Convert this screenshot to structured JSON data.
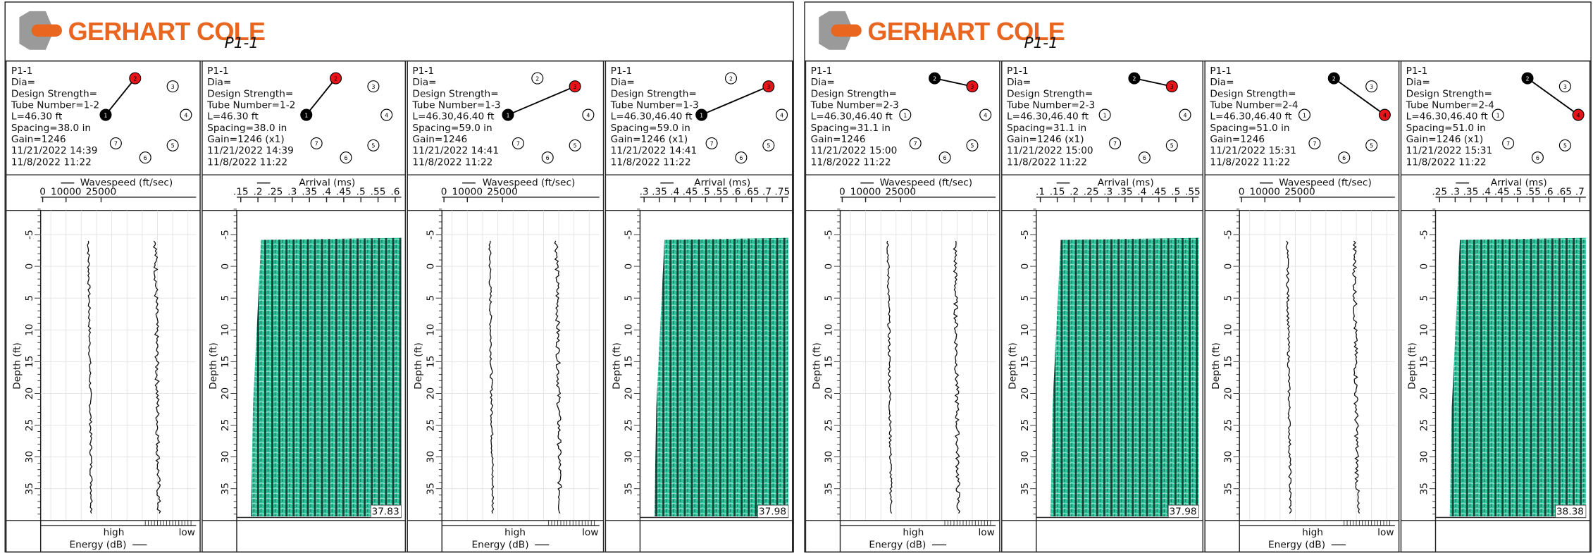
{
  "tube_labels": [
    "1",
    "2",
    "3",
    "4",
    "5",
    "6",
    "7"
  ],
  "reports": [
    {
      "logo": "GERHART COLE",
      "title": "P1-1",
      "panels": [
        {
          "info": [
            "P1-1",
            "Dia=",
            "Design Strength=",
            "Tube Number=1-2",
            "L=46.30 ft",
            "Spacing=38.0 in",
            "Gain=1246",
            "11/21/2022 14:39",
            "11/8/2022 11:22"
          ],
          "axis_title": "Wavespeed (ft/sec)",
          "axis_ticks": [
            "0",
            "10000",
            "25000"
          ],
          "depth_label": "Depth (ft)",
          "depth_ticks": [
            "-5",
            "0",
            "5",
            "10",
            "15",
            "20",
            "25",
            "30",
            "35"
          ],
          "energy_high": "high",
          "energy_low": "low",
          "energy_label": "Energy (dB)"
        },
        {
          "info": [
            "P1-1",
            "Dia=",
            "Design Strength=",
            "Tube Number=1-2",
            "L=46.30 ft",
            "Spacing=38.0 in",
            "Gain=1246 (x1)",
            "11/21/2022 14:39",
            "11/8/2022 11:22"
          ],
          "axis_title": "Arrival (ms)",
          "axis_ticks": [
            ".15",
            ".2",
            ".25",
            ".3",
            ".35",
            ".4",
            ".45",
            ".5",
            ".55",
            ".6"
          ],
          "depth_label": "Depth (ft)",
          "depth_ticks": [
            "-5",
            "0",
            "5",
            "10",
            "15",
            "20",
            "25",
            "30",
            "35"
          ],
          "end_value": "37.83"
        },
        {
          "info": [
            "P1-1",
            "Dia=",
            "Design Strength=",
            "Tube Number=1-3",
            "L=46.30,46.40 ft",
            "Spacing=59.0 in",
            "Gain=1246",
            "11/21/2022 14:41",
            "11/8/2022 11:22"
          ],
          "axis_title": "Wavespeed (ft/sec)",
          "axis_ticks": [
            "0",
            "10000",
            "25000"
          ],
          "depth_label": "Depth (ft)",
          "depth_ticks": [
            "-5",
            "0",
            "5",
            "10",
            "15",
            "20",
            "25",
            "30",
            "35"
          ],
          "energy_high": "high",
          "energy_low": "low",
          "energy_label": "Energy (dB)"
        },
        {
          "info": [
            "P1-1",
            "Dia=",
            "Design Strength=",
            "Tube Number=1-3",
            "L=46.30,46.40 ft",
            "Spacing=59.0 in",
            "Gain=1246 (x1)",
            "11/21/2022 14:41",
            "11/8/2022 11:22"
          ],
          "axis_title": "Arrival (ms)",
          "axis_ticks": [
            ".3",
            ".35",
            ".4",
            ".45",
            ".5",
            ".55",
            ".6",
            ".65",
            ".7",
            ".75"
          ],
          "depth_label": "Depth (ft)",
          "depth_ticks": [
            "-5",
            "0",
            "5",
            "10",
            "15",
            "20",
            "25",
            "30",
            "35"
          ],
          "end_value": "37.98"
        }
      ]
    },
    {
      "logo": "GERHART COLE",
      "title": "P1-1",
      "panels": [
        {
          "info": [
            "P1-1",
            "Dia=",
            "Design Strength=",
            "Tube Number=2-3",
            "L=46.30,46.40 ft",
            "Spacing=31.1 in",
            "Gain=1246",
            "11/21/2022 15:00",
            "11/8/2022 11:22"
          ],
          "axis_title": "Wavespeed (ft/sec)",
          "axis_ticks": [
            "0",
            "10000",
            "25000"
          ],
          "depth_label": "Depth (ft)",
          "depth_ticks": [
            "-5",
            "0",
            "5",
            "10",
            "15",
            "20",
            "25",
            "30",
            "35"
          ],
          "energy_high": "high",
          "energy_low": "low",
          "energy_label": "Energy (dB)"
        },
        {
          "info": [
            "P1-1",
            "Dia=",
            "Design Strength=",
            "Tube Number=2-3",
            "L=46.30,46.40 ft",
            "Spacing=31.1 in",
            "Gain=1246 (x1)",
            "11/21/2022 15:00",
            "11/8/2022 11:22"
          ],
          "axis_title": "Arrival (ms)",
          "axis_ticks": [
            ".1",
            ".15",
            ".2",
            ".25",
            ".3",
            ".35",
            ".4",
            ".45",
            ".5",
            ".55"
          ],
          "depth_label": "Depth (ft)",
          "depth_ticks": [
            "-5",
            "0",
            "5",
            "10",
            "15",
            "20",
            "25",
            "30",
            "35"
          ],
          "end_value": "37.98"
        },
        {
          "info": [
            "P1-1",
            "Dia=",
            "Design Strength=",
            "Tube Number=2-4",
            "L=46.30,46.40 ft",
            "Spacing=51.0 in",
            "Gain=1246",
            "11/21/2022 15:31",
            "11/8/2022 11:22"
          ],
          "axis_title": "Wavespeed (ft/sec)",
          "axis_ticks": [
            "0",
            "10000",
            "25000"
          ],
          "depth_label": "Depth (ft)",
          "depth_ticks": [
            "-5",
            "0",
            "5",
            "10",
            "15",
            "20",
            "25",
            "30",
            "35"
          ],
          "energy_high": "high",
          "energy_low": "low",
          "energy_label": "Energy (dB)"
        },
        {
          "info": [
            "P1-1",
            "Dia=",
            "Design Strength=",
            "Tube Number=2-4",
            "L=46.30,46.40 ft",
            "Spacing=51.0 in",
            "Gain=1246 (x1)",
            "11/21/2022 15:31",
            "11/8/2022 11:22"
          ],
          "axis_title": "Arrival (ms)",
          "axis_ticks": [
            ".25",
            ".3",
            ".35",
            ".4",
            ".45",
            ".5",
            ".55",
            ".6",
            ".65",
            ".7"
          ],
          "depth_label": "Depth (ft)",
          "depth_ticks": [
            "-5",
            "0",
            "5",
            "10",
            "15",
            "20",
            "25",
            "30",
            "35"
          ],
          "end_value": "38.38"
        }
      ]
    }
  ]
}
